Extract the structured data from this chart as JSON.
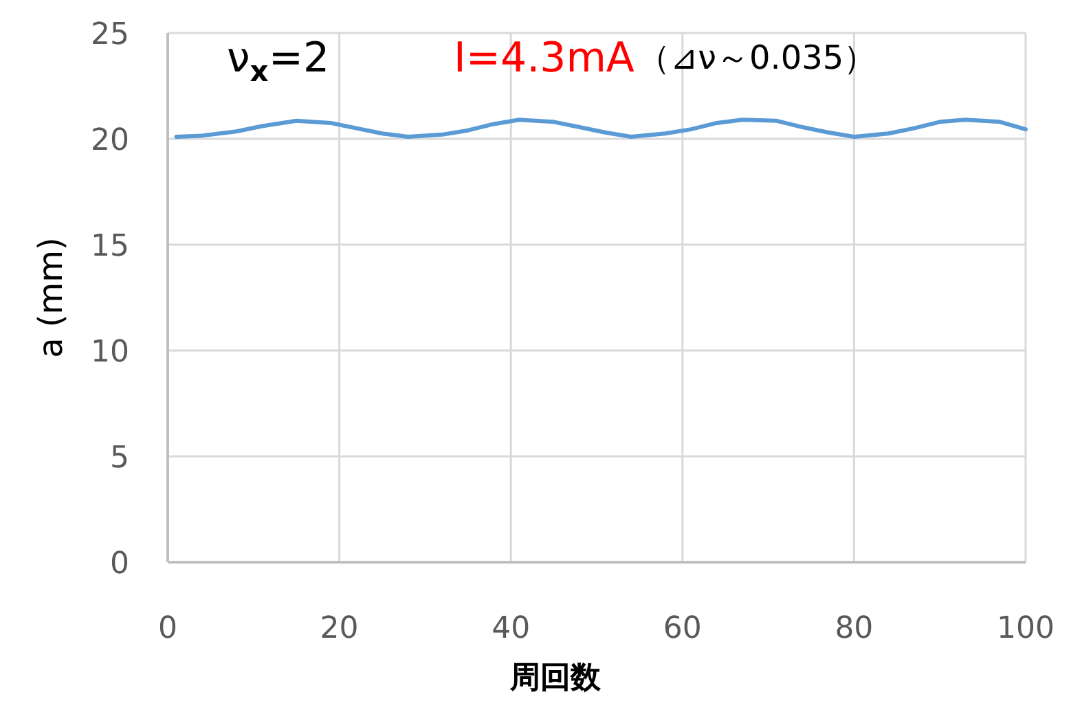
{
  "chart_data": {
    "type": "line",
    "title": "ν$_{x}$=2",
    "subtitle": "I=4.3mA",
    "annotations": [
      "（⊿ν～0.035）"
    ],
    "xlabel": "周回数",
    "ylabel": "a (mm)",
    "xlim": [
      0,
      100
    ],
    "xticks": [
      0,
      20,
      40,
      60,
      80,
      100
    ],
    "ylim": [
      0,
      25
    ],
    "yticks": [
      0,
      5,
      10,
      15,
      20,
      25
    ],
    "grid": true,
    "series": [
      {
        "color": "#5b9bd5",
        "x": [
          1,
          4,
          8,
          11,
          15,
          19,
          22,
          25,
          28,
          32,
          35,
          38,
          41,
          45,
          48,
          51,
          54,
          58,
          61,
          64,
          67,
          71,
          74,
          77,
          80,
          84,
          87,
          90,
          93,
          97,
          100
        ],
        "values": [
          20.1,
          20.15,
          20.35,
          20.6,
          20.85,
          20.75,
          20.5,
          20.25,
          20.1,
          20.2,
          20.4,
          20.7,
          20.9,
          20.8,
          20.55,
          20.3,
          20.1,
          20.25,
          20.45,
          20.75,
          20.9,
          20.85,
          20.55,
          20.3,
          20.1,
          20.25,
          20.5,
          20.8,
          20.9,
          20.8,
          20.45
        ]
      }
    ]
  }
}
